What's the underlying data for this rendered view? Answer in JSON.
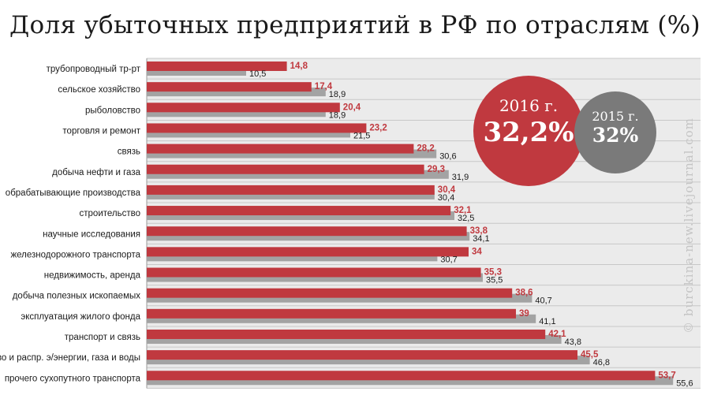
{
  "title": "Доля убыточных предприятий в РФ по отраслям (%)",
  "watermark": "© burckina-new.livejournal.com",
  "bubbles": {
    "current": {
      "year": "2016 г.",
      "value": "32,2%"
    },
    "previous": {
      "year": "2015 г.",
      "value": "32%"
    }
  },
  "colors": {
    "current": "#c0393f",
    "previous": "#a3a3a3",
    "label_current": "#c0393f",
    "label_previous": "#1a1a1a",
    "grid": "#c8c8c8",
    "band": "#ebebeb"
  },
  "chart_data": {
    "type": "bar",
    "orientation": "horizontal",
    "categories": [
      "трубопроводный тр-рт",
      "сельское хозяйство",
      "рыболовство",
      "торговля и ремонт",
      "связь",
      "добыча нефти и газа",
      "обрабатывающие производства",
      "строительство",
      "научные исследования",
      "железнодорожного транспорта",
      "недвижимость, аренда",
      "добыча полезных ископаемых",
      "эксплуатация жилого фонда",
      "транспорт и связь",
      "пр-во и распр. э/энергии, газа и воды",
      "прочего сухопутного транспорта"
    ],
    "series": [
      {
        "key": "2016",
        "labels": [
          "14,8",
          "17,4",
          "20,4",
          "23,2",
          "28,2",
          "29,3",
          "30,4",
          "32,1",
          "33,8",
          "34",
          "35,3",
          "38,6",
          "39",
          "42,1",
          "45,5",
          "53,7"
        ],
        "values": [
          14.8,
          17.4,
          20.4,
          23.2,
          28.2,
          29.3,
          30.4,
          32.1,
          33.8,
          34,
          35.3,
          38.6,
          39,
          42.1,
          45.5,
          53.7
        ]
      },
      {
        "key": "2015",
        "labels": [
          "10,5",
          "18,9",
          "18,9",
          "21,5",
          "30,6",
          "31,9",
          "30,4",
          "32,5",
          "34,1",
          "30,7",
          "35,5",
          "40,7",
          "41,1",
          "43,8",
          "46,8",
          "55,6"
        ],
        "values": [
          10.5,
          18.9,
          18.9,
          21.5,
          30.6,
          31.9,
          30.4,
          32.5,
          34.1,
          30.7,
          35.5,
          40.7,
          41.1,
          43.8,
          46.8,
          55.6
        ]
      }
    ],
    "xlim": [
      0,
      56
    ],
    "grid": true
  }
}
